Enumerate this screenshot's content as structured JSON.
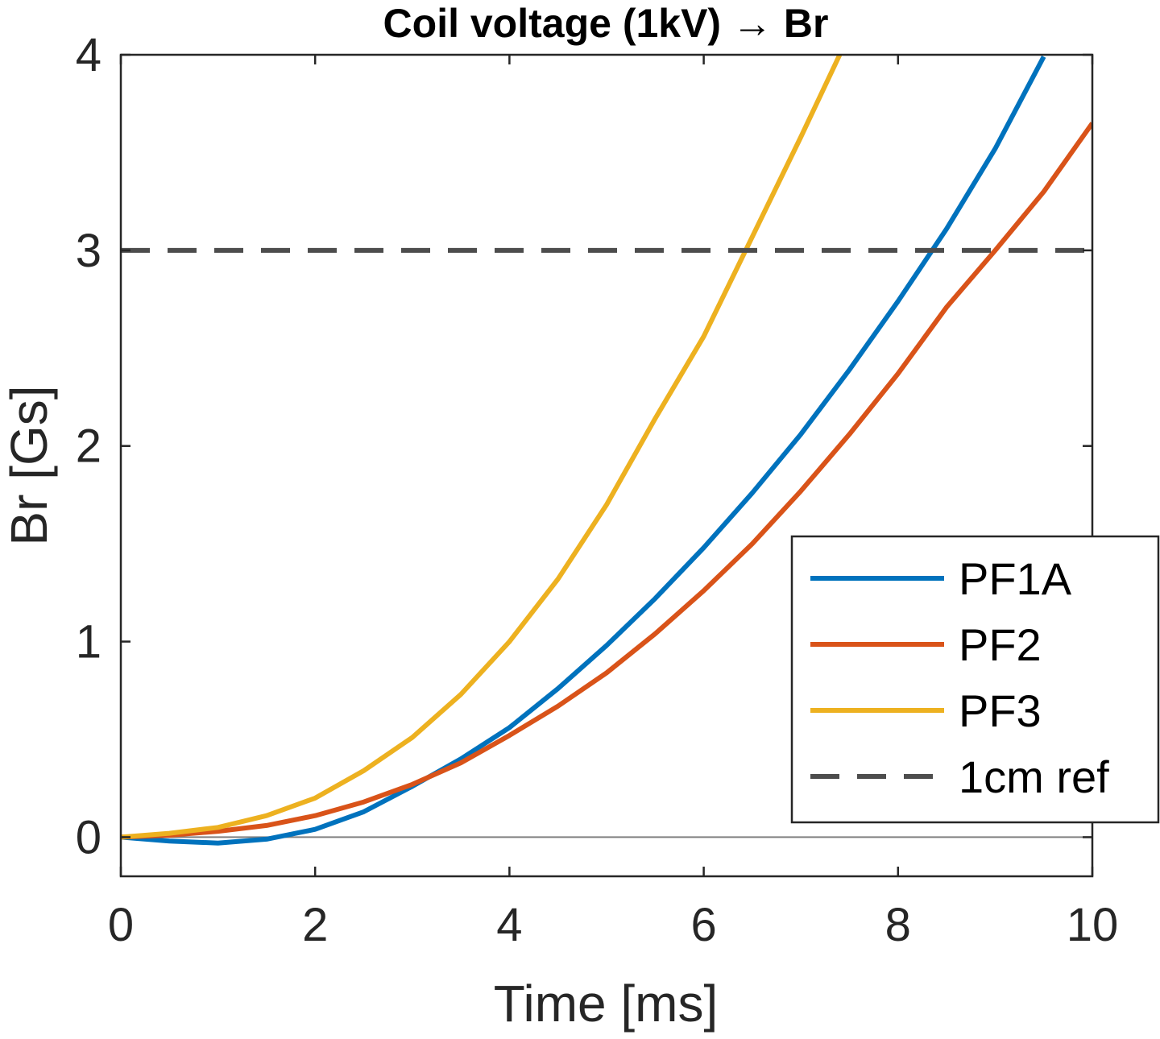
{
  "chart_data": {
    "type": "line",
    "title": "Coil voltage (1kV) → Br",
    "xlabel": "Time [ms]",
    "ylabel": "Br [Gs]",
    "xlim": [
      0,
      10
    ],
    "ylim": [
      -0.2,
      4
    ],
    "xticks": [
      0,
      2,
      4,
      6,
      8,
      10
    ],
    "xtick_labels": [
      "0",
      "2",
      "4",
      "6",
      "8",
      "10"
    ],
    "yticks": [
      0,
      1,
      2,
      3,
      4
    ],
    "ytick_labels": [
      "0",
      "1",
      "2",
      "3",
      "4"
    ],
    "grid": false,
    "legend_position": "bottom-right",
    "series": [
      {
        "name": "PF1A",
        "color": "#0072BD",
        "style": "solid",
        "x": [
          0,
          0.5,
          1,
          1.5,
          2,
          2.5,
          3,
          3.5,
          4,
          4.5,
          5,
          5.5,
          6,
          6.5,
          7,
          7.5,
          8,
          8.5,
          9,
          9.5
        ],
        "y": [
          0,
          -0.02,
          -0.03,
          -0.01,
          0.04,
          0.13,
          0.26,
          0.4,
          0.56,
          0.76,
          0.98,
          1.22,
          1.48,
          1.76,
          2.06,
          2.39,
          2.74,
          3.11,
          3.52,
          3.99
        ]
      },
      {
        "name": "PF2",
        "color": "#D95319",
        "style": "solid",
        "x": [
          0,
          0.5,
          1,
          1.5,
          2,
          2.5,
          3,
          3.5,
          4,
          4.5,
          5,
          5.5,
          6,
          6.5,
          7,
          7.5,
          8,
          8.5,
          9,
          9.5,
          10
        ],
        "y": [
          0,
          0.01,
          0.03,
          0.06,
          0.11,
          0.18,
          0.27,
          0.38,
          0.52,
          0.67,
          0.84,
          1.04,
          1.26,
          1.5,
          1.77,
          2.06,
          2.37,
          2.71,
          3.0,
          3.3,
          3.65
        ]
      },
      {
        "name": "PF3",
        "color": "#EDB120",
        "style": "solid",
        "x": [
          0,
          0.5,
          1,
          1.5,
          2,
          2.5,
          3,
          3.5,
          4,
          4.5,
          5,
          5.5,
          6,
          6.5,
          7,
          7.4
        ],
        "y": [
          0,
          0.02,
          0.05,
          0.11,
          0.2,
          0.34,
          0.51,
          0.73,
          1.0,
          1.32,
          1.7,
          2.14,
          2.56,
          3.07,
          3.58,
          4.0
        ]
      },
      {
        "name": "1cm ref",
        "color": "#4D4D4D",
        "style": "dashed",
        "x": [
          0,
          10
        ],
        "y": [
          3,
          3
        ]
      }
    ],
    "zero_line": {
      "y": 0,
      "color": "#808080"
    }
  }
}
